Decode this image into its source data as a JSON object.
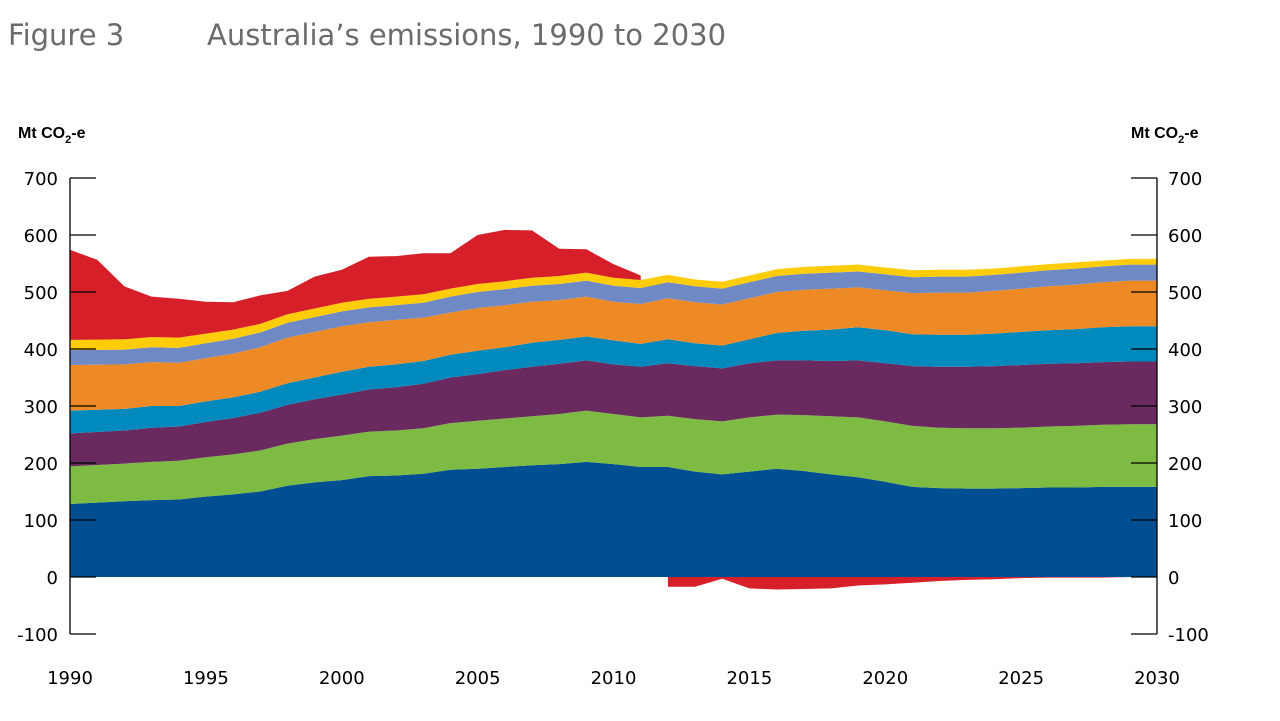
{
  "figure_label": "Figure 3",
  "title": "Australia’s emissions, 1990 to 2030",
  "unit": {
    "main": "Mt CO",
    "sub": "2",
    "tail": "-e"
  },
  "chart_data": {
    "type": "area",
    "stacked": true,
    "x_range": [
      1990,
      2030
    ],
    "ylim": [
      -100,
      700
    ],
    "y_ticks": [
      -100,
      0,
      100,
      200,
      300,
      400,
      500,
      600,
      700
    ],
    "x_ticks": [
      1990,
      1995,
      2000,
      2005,
      2010,
      2015,
      2020,
      2025,
      2030
    ],
    "dual_y_axis": true,
    "grid": false,
    "legend": "none",
    "years": [
      1990,
      1992,
      1993,
      1994,
      1995,
      1996,
      1997,
      1998,
      1999,
      2000,
      2001,
      2002,
      2003,
      2004,
      2005,
      2006,
      2007,
      2008,
      2009,
      2010,
      2011,
      2012,
      2013,
      2014,
      2015,
      2016,
      2017,
      2018,
      2019,
      2020,
      2021,
      2022,
      2023,
      2024,
      2025,
      2026,
      2027,
      2028,
      2029,
      2030
    ],
    "series": [
      {
        "color": "#004f93",
        "values": [
          128,
          133,
          135,
          136,
          141,
          145,
          150,
          160,
          166,
          170,
          177,
          178,
          181,
          188,
          190,
          193,
          196,
          198,
          202,
          198,
          193,
          193,
          185,
          180,
          185,
          190,
          186,
          180,
          175,
          167,
          158,
          156,
          155,
          155,
          156,
          157,
          157,
          158,
          158,
          158
        ]
      },
      {
        "color": "#7dbb42",
        "values": [
          66,
          66,
          67,
          68,
          69,
          70,
          72,
          74,
          76,
          78,
          78,
          79,
          80,
          82,
          84,
          85,
          86,
          88,
          90,
          88,
          87,
          90,
          92,
          93,
          95,
          95,
          98,
          102,
          105,
          106,
          107,
          106,
          106,
          106,
          106,
          107,
          108,
          109,
          110,
          110
        ]
      },
      {
        "color": "#6a2a60",
        "values": [
          58,
          58,
          60,
          60,
          62,
          64,
          66,
          68,
          70,
          72,
          74,
          76,
          78,
          80,
          82,
          85,
          87,
          88,
          88,
          87,
          89,
          92,
          93,
          93,
          95,
          95,
          96,
          97,
          100,
          102,
          105,
          107,
          108,
          109,
          110,
          110,
          110,
          110,
          110,
          110
        ]
      },
      {
        "color": "#0089bd",
        "values": [
          40,
          38,
          38,
          36,
          36,
          36,
          37,
          38,
          38,
          40,
          40,
          40,
          40,
          40,
          41,
          40,
          42,
          42,
          42,
          42,
          40,
          42,
          40,
          40,
          42,
          48,
          52,
          55,
          58,
          58,
          56,
          56,
          56,
          57,
          58,
          59,
          60,
          61,
          62,
          62
        ]
      },
      {
        "color": "#ee8a25",
        "values": [
          80,
          78,
          77,
          76,
          76,
          77,
          78,
          80,
          80,
          80,
          78,
          78,
          76,
          74,
          75,
          74,
          72,
          70,
          70,
          68,
          70,
          72,
          72,
          72,
          72,
          72,
          72,
          72,
          70,
          70,
          72,
          74,
          74,
          75,
          76,
          77,
          78,
          79,
          80,
          80
        ]
      },
      {
        "color": "#6f89c4",
        "values": [
          26,
          26,
          26,
          26,
          26,
          26,
          26,
          26,
          26,
          26,
          26,
          26,
          26,
          28,
          28,
          28,
          28,
          28,
          28,
          28,
          28,
          28,
          28,
          28,
          28,
          28,
          28,
          28,
          28,
          28,
          28,
          28,
          28,
          28,
          28,
          28,
          28,
          28,
          28,
          28
        ]
      },
      {
        "color": "#ffcc08",
        "values": [
          18,
          18,
          18,
          18,
          17,
          16,
          15,
          15,
          15,
          15,
          15,
          15,
          15,
          14,
          14,
          14,
          14,
          14,
          14,
          14,
          14,
          13,
          12,
          12,
          12,
          12,
          12,
          12,
          12,
          12,
          12,
          12,
          12,
          11,
          11,
          11,
          11,
          10,
          10,
          10
        ]
      }
    ],
    "lulucf_series": {
      "color": "#d71f2a",
      "positive": {
        "years": [
          1990,
          1991,
          1992,
          1993,
          1994,
          1995,
          1996,
          1997,
          1998,
          1999,
          2000,
          2001,
          2002,
          2003,
          2004,
          2005,
          2006,
          2007,
          2008,
          2009,
          2010,
          2011
        ],
        "values": [
          158,
          140,
          93,
          71,
          68,
          56,
          48,
          50,
          41,
          56,
          58,
          74,
          71,
          72,
          62,
          86,
          90,
          83,
          48,
          41,
          24,
          8
        ]
      },
      "negative": {
        "years": [
          2012,
          2013,
          2014,
          2015,
          2016,
          2017,
          2018,
          2019,
          2020,
          2021,
          2022,
          2023,
          2024,
          2025,
          2026,
          2027,
          2028,
          2029,
          2030
        ],
        "values": [
          -17,
          -17,
          -3,
          -20,
          -22,
          -21,
          -20,
          -15,
          -13,
          -10,
          -7,
          -5,
          -4,
          -2,
          -1,
          -1,
          -1,
          0,
          0
        ]
      }
    }
  }
}
